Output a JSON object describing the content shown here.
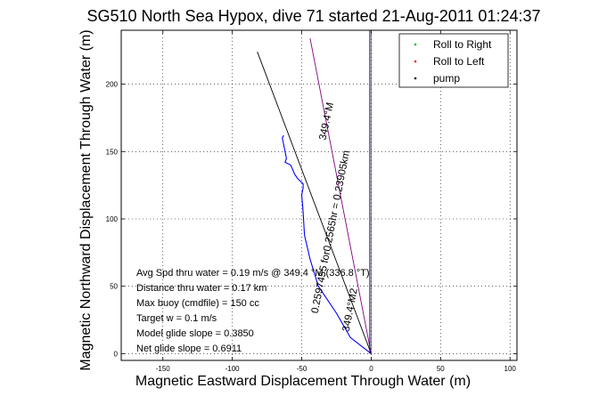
{
  "chart_data": {
    "type": "line",
    "title": "SG510 North Sea Hypox, dive 71 started 21-Aug-2011 01:24:37",
    "xlabel": "Magnetic Eastward Displacement Through Water (m)",
    "ylabel": "Magnetic Northward Displacement Through Water (m)",
    "xlim": [
      -180,
      105
    ],
    "ylim": [
      -5,
      240
    ],
    "xticks": [
      -150,
      -100,
      -50,
      0,
      50,
      100
    ],
    "yticks": [
      0,
      50,
      100,
      150,
      200
    ],
    "grid": true,
    "legend_position": "top-right",
    "legend": [
      {
        "label": "Roll to Right",
        "color": "#00c000",
        "marker": "."
      },
      {
        "label": "Roll to Left",
        "color": "#ff0000",
        "marker": "."
      },
      {
        "label": "pump",
        "color": "#000000",
        "marker": "."
      }
    ],
    "series": [
      {
        "style": "track",
        "color": "#0000ff",
        "x": [
          0,
          -15,
          -25,
          -38,
          -44,
          -48,
          -49,
          -50,
          -49,
          -49,
          -51,
          -53,
          -55,
          -58,
          -62,
          -61,
          -62,
          -63,
          -64,
          -63
        ],
        "y": [
          0,
          12,
          30,
          50,
          70,
          88,
          105,
          118,
          123,
          126,
          128,
          130,
          133,
          140,
          142,
          145,
          150,
          155,
          160,
          162
        ]
      },
      {
        "style": "bearing-line",
        "color": "#000000",
        "x": [
          0,
          -82
        ],
        "y": [
          0,
          224
        ]
      },
      {
        "style": "bearing-line",
        "color": "#800080",
        "x": [
          0,
          -44
        ],
        "y": [
          0,
          234
        ]
      },
      {
        "style": "bearing-line",
        "color": "#000000",
        "x": [
          -1,
          -1
        ],
        "y": [
          0,
          240
        ]
      },
      {
        "style": "dashed",
        "color": "#0000ff",
        "x": [
          0,
          0
        ],
        "y": [
          0,
          240
        ]
      }
    ],
    "annotations": [
      {
        "text": "349.4°M",
        "x": -30,
        "y": 172,
        "rotation": -78
      },
      {
        "text": "0.2597455 for0.2565hr = 0.23905km",
        "x": -27,
        "y": 90,
        "rotation": -79
      },
      {
        "text": "349.4°M2",
        "x": -13,
        "y": 32,
        "rotation": -79
      }
    ],
    "notes": [
      "Avg Spd thru water =  0.19 m/s @ 349.4 °M (336.8 °T)",
      "Distance thru water =  0.17 km",
      "Max buoy (cmdfile) = 150 cc",
      "Target w = 0.1 m/s",
      "Model glide slope = 0.3850",
      "Net glide slope = 0.6911"
    ]
  }
}
